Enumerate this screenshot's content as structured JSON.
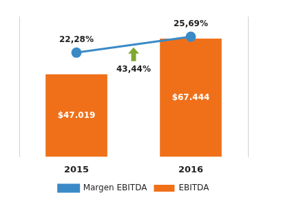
{
  "chart_data": {
    "type": "bar",
    "categories": [
      "2015",
      "2016"
    ],
    "series": [
      {
        "name": "EBITDA",
        "type": "bar",
        "color": "#f07019",
        "values": [
          47019,
          67444
        ],
        "value_labels": [
          "$47.019",
          "$67.444"
        ]
      },
      {
        "name": "Margen EBITDA",
        "type": "line",
        "color": "#3b8ac6",
        "marker": "circle",
        "axis": "y2",
        "values": [
          22.28,
          25.69
        ],
        "value_labels": [
          "22,28%",
          "25,69%"
        ]
      }
    ],
    "ylim": [
      0,
      80000
    ],
    "y2lim": [
      0,
      30
    ],
    "annotations": [
      {
        "text": "43,44%"
      }
    ],
    "data_labels": true,
    "grid": false,
    "legend": "bottom",
    "tick_labels": "x"
  }
}
